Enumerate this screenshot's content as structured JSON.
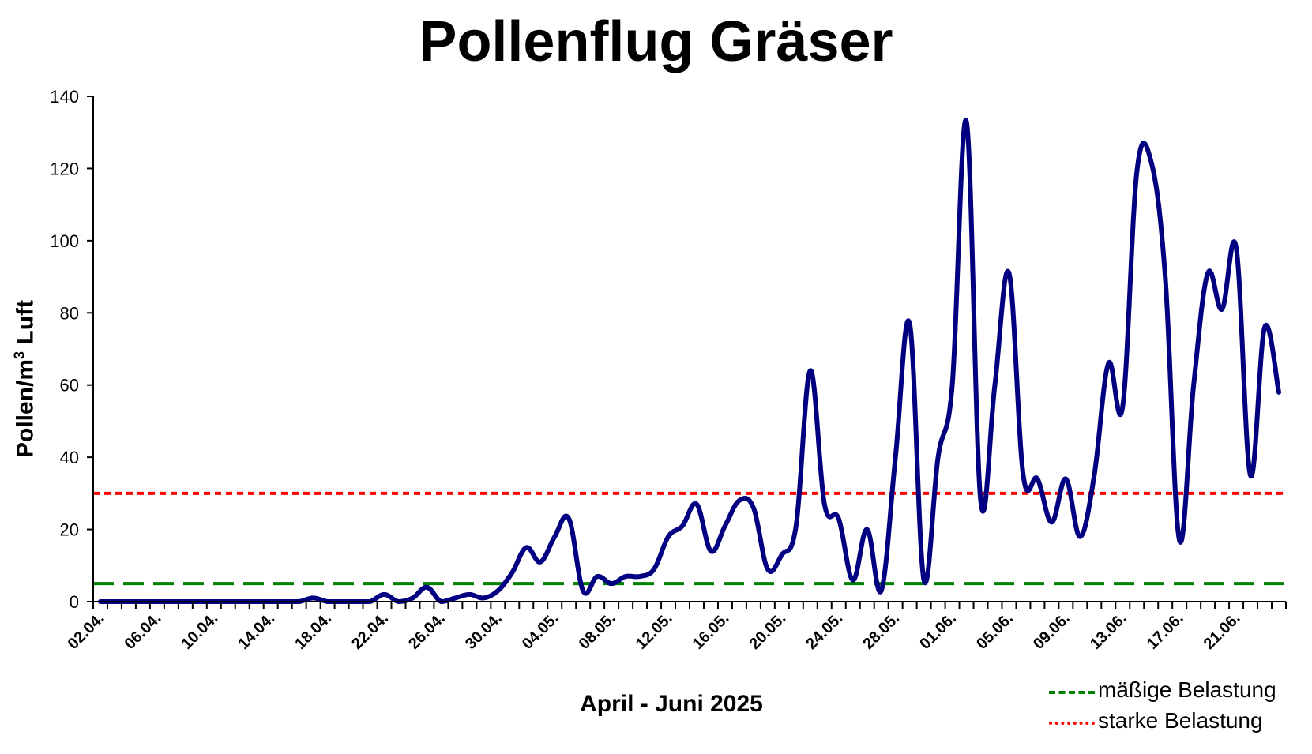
{
  "chart_data": {
    "type": "line",
    "title": "Pollenflug Gräser",
    "xlabel": "April - Juni 2025",
    "ylabel_main": "Pollen/m",
    "ylabel_sup": "3",
    "ylabel_tail": " Luft",
    "ylim": [
      0,
      140
    ],
    "yticks": [
      0,
      20,
      40,
      60,
      80,
      100,
      120,
      140
    ],
    "grid": false,
    "legend_position": "bottom-right",
    "xticks": [
      "02.04.",
      "06.04.",
      "10.04.",
      "14.04.",
      "18.04.",
      "22.04.",
      "26.04.",
      "30.04.",
      "04.05.",
      "08.05.",
      "12.05.",
      "16.05.",
      "20.05.",
      "24.05.",
      "28.05.",
      "01.06.",
      "05.06.",
      "09.06.",
      "13.06.",
      "17.06.",
      "21.06."
    ],
    "x_start": "02.04.",
    "x_end": "24.06.",
    "series": [
      {
        "color": "#000080",
        "values": [
          0,
          0,
          0,
          0,
          0,
          0,
          0,
          0,
          0,
          0,
          0,
          0,
          0,
          0,
          0,
          1,
          0,
          0,
          0,
          0,
          2,
          0,
          1,
          4,
          0,
          1,
          2,
          1,
          3,
          8,
          15,
          11,
          18,
          23,
          3,
          7,
          5,
          7,
          7,
          9,
          18,
          21,
          27,
          14,
          21,
          28,
          26,
          9,
          13,
          21,
          64,
          27,
          23,
          6,
          20,
          3,
          40,
          77,
          6,
          40,
          60,
          133,
          28,
          60,
          91,
          35,
          34,
          22,
          34,
          18,
          35,
          66,
          54,
          119,
          122,
          90,
          17,
          60,
          91,
          81,
          98,
          35,
          76,
          58
        ]
      }
    ],
    "reference_lines": [
      {
        "name": "mäßige Belastung",
        "value": 5,
        "color": "#008000",
        "style": "dashed"
      },
      {
        "name": "starke Belastung",
        "value": 30,
        "color": "#ff0000",
        "style": "dotted"
      }
    ]
  }
}
